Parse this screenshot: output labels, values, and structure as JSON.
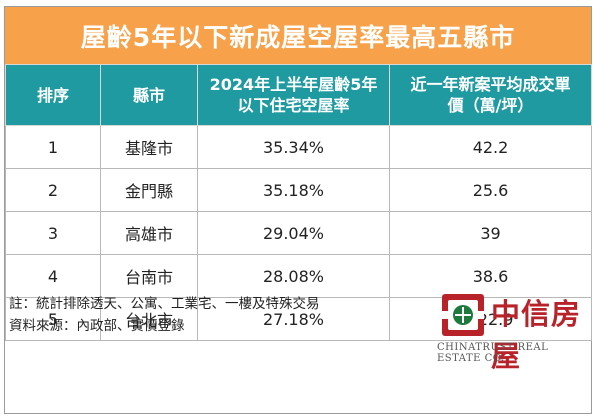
{
  "title": "屋齡5年以下新成屋空屋率最高五縣市",
  "headers": {
    "rank": "排序",
    "county": "縣市",
    "vacancy_line1": "2024年上半年屋齡5年",
    "vacancy_line2": "以下住宅空屋率",
    "price_line1": "近一年新案平均成交單",
    "price_line2": "價（萬/坪）"
  },
  "rows": [
    {
      "rank": "1",
      "county": "基隆市",
      "vacancy": "35.34%",
      "price": "42.2"
    },
    {
      "rank": "2",
      "county": "金門縣",
      "vacancy": "35.18%",
      "price": "25.6"
    },
    {
      "rank": "3",
      "county": "高雄市",
      "vacancy": "29.04%",
      "price": "39"
    },
    {
      "rank": "4",
      "county": "台南市",
      "vacancy": "28.08%",
      "price": "38.6"
    },
    {
      "rank": "5",
      "county": "台北市",
      "vacancy": "27.18%",
      "price": "122.9"
    }
  ],
  "footer": {
    "note": "註：統計排除透天、公寓、工業宅、一樓及特殊交易",
    "source": "資料來源：內政部、實價登錄"
  },
  "logo": {
    "name": "中信房屋",
    "subtitle": "CHINATRUST REAL ESTATE CO."
  },
  "colors": {
    "title_bg": "#f7a24a",
    "header_bg": "#1f9aa0",
    "logo_red": "#b8232a"
  }
}
